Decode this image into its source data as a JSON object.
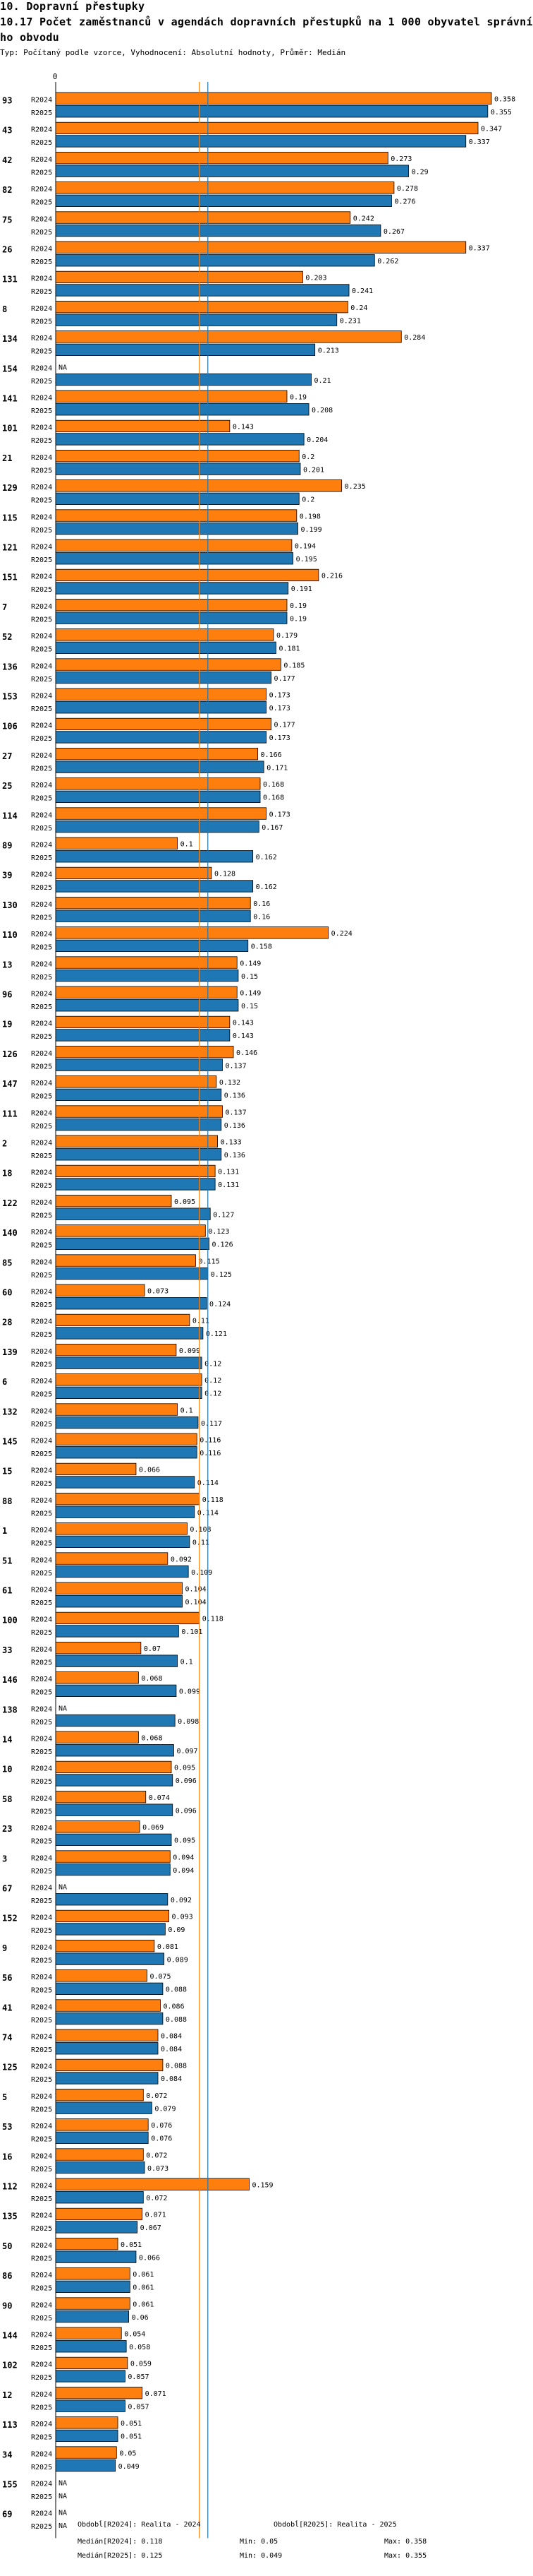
{
  "header": {
    "section": "10. Dopravní přestupky",
    "title": "10.17 Počet zaměstnanců v agendách dopravních přestupků na 1 000 obyvatel správní",
    "title_cont": "ho obvodu",
    "subtitle": "Typ: Počítaný podle vzorce, Vyhodnocení: Absolutní hodnoty, Průměr: Medián"
  },
  "colors": {
    "r2024": "#ff7f0e",
    "r2025": "#1f77b4",
    "median2024": "#ff7f0e",
    "median2025": "#1f77b4",
    "border": "#000000"
  },
  "chart_data": {
    "type": "bar",
    "orientation": "horizontal",
    "series_labels": [
      "R2024",
      "R2025"
    ],
    "axis_zero_label": "0",
    "xlim": [
      0,
      0.358
    ],
    "na_label": "NA",
    "median_2024": 0.118,
    "median_2025": 0.125,
    "categories": [
      {
        "id": "93",
        "r2024": 0.358,
        "r2025": 0.355
      },
      {
        "id": "43",
        "r2024": 0.347,
        "r2025": 0.337
      },
      {
        "id": "42",
        "r2024": 0.273,
        "r2025": 0.29
      },
      {
        "id": "82",
        "r2024": 0.278,
        "r2025": 0.276
      },
      {
        "id": "75",
        "r2024": 0.242,
        "r2025": 0.267
      },
      {
        "id": "26",
        "r2024": 0.337,
        "r2025": 0.262
      },
      {
        "id": "131",
        "r2024": 0.203,
        "r2025": 0.241
      },
      {
        "id": "8",
        "r2024": 0.24,
        "r2025": 0.231
      },
      {
        "id": "134",
        "r2024": 0.284,
        "r2025": 0.213
      },
      {
        "id": "154",
        "r2024": null,
        "r2025": 0.21
      },
      {
        "id": "141",
        "r2024": 0.19,
        "r2025": 0.208
      },
      {
        "id": "101",
        "r2024": 0.143,
        "r2025": 0.204
      },
      {
        "id": "21",
        "r2024": 0.2,
        "r2025": 0.201
      },
      {
        "id": "129",
        "r2024": 0.235,
        "r2025": 0.2
      },
      {
        "id": "115",
        "r2024": 0.198,
        "r2025": 0.199
      },
      {
        "id": "121",
        "r2024": 0.194,
        "r2025": 0.195
      },
      {
        "id": "151",
        "r2024": 0.216,
        "r2025": 0.191
      },
      {
        "id": "7",
        "r2024": 0.19,
        "r2025": 0.19
      },
      {
        "id": "52",
        "r2024": 0.179,
        "r2025": 0.181
      },
      {
        "id": "136",
        "r2024": 0.185,
        "r2025": 0.177
      },
      {
        "id": "153",
        "r2024": 0.173,
        "r2025": 0.173
      },
      {
        "id": "106",
        "r2024": 0.177,
        "r2025": 0.173
      },
      {
        "id": "27",
        "r2024": 0.166,
        "r2025": 0.171
      },
      {
        "id": "25",
        "r2024": 0.168,
        "r2025": 0.168
      },
      {
        "id": "114",
        "r2024": 0.173,
        "r2025": 0.167
      },
      {
        "id": "89",
        "r2024": 0.1,
        "r2025": 0.162
      },
      {
        "id": "39",
        "r2024": 0.128,
        "r2025": 0.162
      },
      {
        "id": "130",
        "r2024": 0.16,
        "r2025": 0.16
      },
      {
        "id": "110",
        "r2024": 0.224,
        "r2025": 0.158
      },
      {
        "id": "13",
        "r2024": 0.149,
        "r2025": 0.15
      },
      {
        "id": "96",
        "r2024": 0.149,
        "r2025": 0.15
      },
      {
        "id": "19",
        "r2024": 0.143,
        "r2025": 0.143
      },
      {
        "id": "126",
        "r2024": 0.146,
        "r2025": 0.137
      },
      {
        "id": "147",
        "r2024": 0.132,
        "r2025": 0.136
      },
      {
        "id": "111",
        "r2024": 0.137,
        "r2025": 0.136
      },
      {
        "id": "2",
        "r2024": 0.133,
        "r2025": 0.136
      },
      {
        "id": "18",
        "r2024": 0.131,
        "r2025": 0.131
      },
      {
        "id": "122",
        "r2024": 0.095,
        "r2025": 0.127
      },
      {
        "id": "140",
        "r2024": 0.123,
        "r2025": 0.126
      },
      {
        "id": "85",
        "r2024": 0.115,
        "r2025": 0.125
      },
      {
        "id": "60",
        "r2024": 0.073,
        "r2025": 0.124
      },
      {
        "id": "28",
        "r2024": 0.11,
        "r2025": 0.121
      },
      {
        "id": "139",
        "r2024": 0.099,
        "r2025": 0.12
      },
      {
        "id": "6",
        "r2024": 0.12,
        "r2025": 0.12
      },
      {
        "id": "132",
        "r2024": 0.1,
        "r2025": 0.117
      },
      {
        "id": "145",
        "r2024": 0.116,
        "r2025": 0.116
      },
      {
        "id": "15",
        "r2024": 0.066,
        "r2025": 0.114
      },
      {
        "id": "88",
        "r2024": 0.118,
        "r2025": 0.114
      },
      {
        "id": "1",
        "r2024": 0.108,
        "r2025": 0.11
      },
      {
        "id": "51",
        "r2024": 0.092,
        "r2025": 0.109
      },
      {
        "id": "61",
        "r2024": 0.104,
        "r2025": 0.104
      },
      {
        "id": "100",
        "r2024": 0.118,
        "r2025": 0.101
      },
      {
        "id": "33",
        "r2024": 0.07,
        "r2025": 0.1
      },
      {
        "id": "146",
        "r2024": 0.068,
        "r2025": 0.099
      },
      {
        "id": "138",
        "r2024": null,
        "r2025": 0.098
      },
      {
        "id": "14",
        "r2024": 0.068,
        "r2025": 0.097
      },
      {
        "id": "10",
        "r2024": 0.095,
        "r2025": 0.096
      },
      {
        "id": "58",
        "r2024": 0.074,
        "r2025": 0.096
      },
      {
        "id": "23",
        "r2024": 0.069,
        "r2025": 0.095
      },
      {
        "id": "3",
        "r2024": 0.094,
        "r2025": 0.094
      },
      {
        "id": "67",
        "r2024": null,
        "r2025": 0.092
      },
      {
        "id": "152",
        "r2024": 0.093,
        "r2025": 0.09
      },
      {
        "id": "9",
        "r2024": 0.081,
        "r2025": 0.089
      },
      {
        "id": "56",
        "r2024": 0.075,
        "r2025": 0.088
      },
      {
        "id": "41",
        "r2024": 0.086,
        "r2025": 0.088
      },
      {
        "id": "74",
        "r2024": 0.084,
        "r2025": 0.084
      },
      {
        "id": "125",
        "r2024": 0.088,
        "r2025": 0.084
      },
      {
        "id": "5",
        "r2024": 0.072,
        "r2025": 0.079
      },
      {
        "id": "53",
        "r2024": 0.076,
        "r2025": 0.076
      },
      {
        "id": "16",
        "r2024": 0.072,
        "r2025": 0.073
      },
      {
        "id": "112",
        "r2024": 0.159,
        "r2025": 0.072
      },
      {
        "id": "135",
        "r2024": 0.071,
        "r2025": 0.067
      },
      {
        "id": "50",
        "r2024": 0.051,
        "r2025": 0.066
      },
      {
        "id": "86",
        "r2024": 0.061,
        "r2025": 0.061
      },
      {
        "id": "90",
        "r2024": 0.061,
        "r2025": 0.06
      },
      {
        "id": "144",
        "r2024": 0.054,
        "r2025": 0.058
      },
      {
        "id": "102",
        "r2024": 0.059,
        "r2025": 0.057
      },
      {
        "id": "12",
        "r2024": 0.071,
        "r2025": 0.057
      },
      {
        "id": "113",
        "r2024": 0.051,
        "r2025": 0.051
      },
      {
        "id": "34",
        "r2024": 0.05,
        "r2025": 0.049
      },
      {
        "id": "155",
        "r2024": null,
        "r2025": null
      },
      {
        "id": "69",
        "r2024": null,
        "r2025": null
      }
    ]
  },
  "footer": {
    "legend_2024": "Obdobĺ[R2024]: Realita - 2024",
    "legend_2025": "Obdobĺ[R2025]: Realita - 2025",
    "median_2024": "Medián[R2024]: 0.118",
    "median_2025": "Medián[R2025]: 0.125",
    "min_2024": "Min: 0.05",
    "min_2025": "Min: 0.049",
    "max_2024": "Max: 0.358",
    "max_2025": "Max: 0.355"
  }
}
